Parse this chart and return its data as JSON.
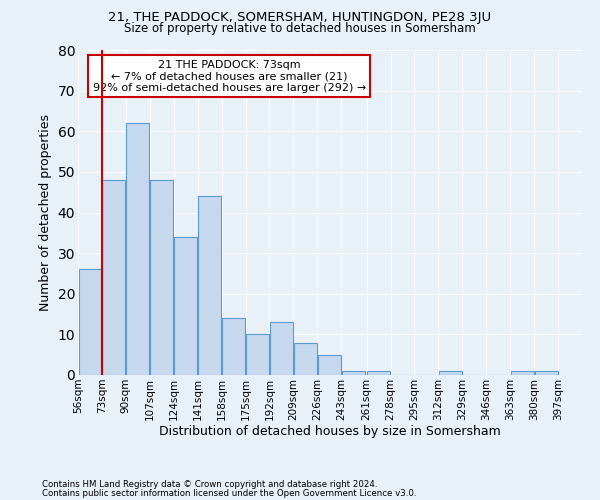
{
  "title1": "21, THE PADDOCK, SOMERSHAM, HUNTINGDON, PE28 3JU",
  "title2": "Size of property relative to detached houses in Somersham",
  "xlabel": "Distribution of detached houses by size in Somersham",
  "ylabel": "Number of detached properties",
  "footer1": "Contains HM Land Registry data © Crown copyright and database right 2024.",
  "footer2": "Contains public sector information licensed under the Open Government Licence v3.0.",
  "annotation_title": "21 THE PADDOCK: 73sqm",
  "annotation_line1": "← 7% of detached houses are smaller (21)",
  "annotation_line2": "92% of semi-detached houses are larger (292) →",
  "bar_left_edges": [
    56,
    73,
    90,
    107,
    124,
    141,
    158,
    175,
    192,
    209,
    226,
    243,
    261,
    278,
    295,
    312,
    329,
    346,
    363,
    380
  ],
  "bar_heights": [
    26,
    48,
    62,
    48,
    34,
    44,
    14,
    10,
    13,
    8,
    5,
    1,
    1,
    0,
    0,
    1,
    0,
    0,
    1,
    1
  ],
  "bin_width": 17,
  "bar_color": "#c5d8ed",
  "bar_edge_color": "#5b9bd5",
  "red_line_x": 73,
  "ylim": [
    0,
    80
  ],
  "yticks": [
    0,
    10,
    20,
    30,
    40,
    50,
    60,
    70,
    80
  ],
  "xlim": [
    56,
    414
  ],
  "tick_labels": [
    "56sqm",
    "73sqm",
    "90sqm",
    "107sqm",
    "124sqm",
    "141sqm",
    "158sqm",
    "175sqm",
    "192sqm",
    "209sqm",
    "226sqm",
    "243sqm",
    "261sqm",
    "278sqm",
    "295sqm",
    "312sqm",
    "329sqm",
    "346sqm",
    "363sqm",
    "380sqm",
    "397sqm"
  ],
  "tick_positions": [
    56,
    73,
    90,
    107,
    124,
    141,
    158,
    175,
    192,
    209,
    226,
    243,
    261,
    278,
    295,
    312,
    329,
    346,
    363,
    380,
    397
  ],
  "background_color": "#e8f0f8",
  "grid_color": "#ffffff",
  "annotation_box_color": "#ffffff",
  "annotation_box_edge": "#cc0000",
  "red_line_color": "#cc0000"
}
